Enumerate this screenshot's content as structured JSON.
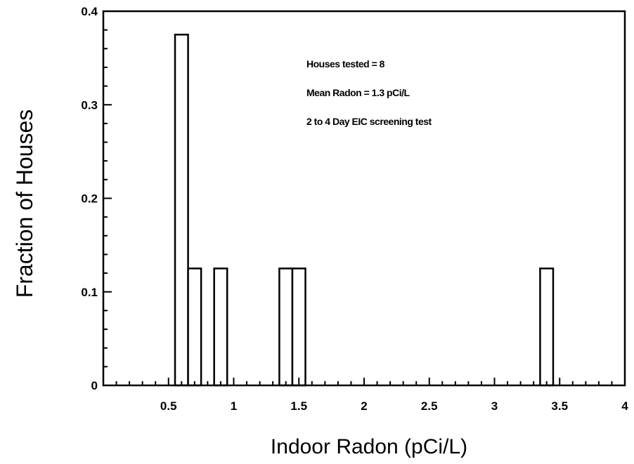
{
  "chart_data": {
    "type": "bar",
    "title": "",
    "xlabel": "Indoor Radon (pCi/L)",
    "ylabel": "Fraction of Houses",
    "xlim": [
      0,
      4
    ],
    "ylim": [
      0,
      0.4
    ],
    "x_tick_values": [
      0.5,
      1,
      1.5,
      2,
      2.5,
      3,
      3.5,
      4
    ],
    "x_tick_labels": [
      "0.5",
      "1",
      "1.5",
      "2",
      "2.5",
      "3",
      "3.5",
      "4"
    ],
    "y_tick_values": [
      0,
      0.1,
      0.2,
      0.3,
      0.4
    ],
    "y_tick_labels": [
      "0",
      "0.1",
      "0.2",
      "0.3",
      "0.4"
    ],
    "bin_width": 0.1,
    "bars": [
      {
        "x": 0.6,
        "value": 0.375
      },
      {
        "x": 0.7,
        "value": 0.125
      },
      {
        "x": 0.9,
        "value": 0.125
      },
      {
        "x": 1.4,
        "value": 0.125
      },
      {
        "x": 1.5,
        "value": 0.125
      },
      {
        "x": 3.4,
        "value": 0.125
      }
    ],
    "annotations": [
      "Houses tested = 8",
      "Mean Radon = 1.3 pCi/L",
      "2 to 4 Day EIC screening test"
    ],
    "grid": false,
    "legend": "none"
  }
}
